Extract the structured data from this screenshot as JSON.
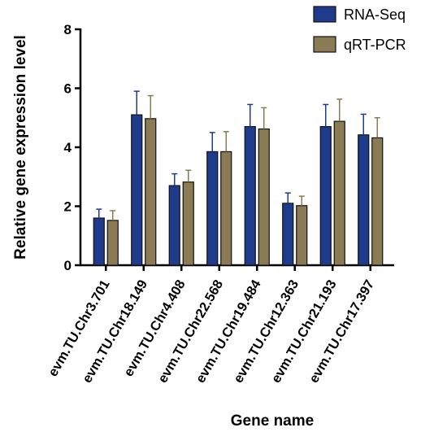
{
  "chart_data": {
    "type": "bar",
    "title": "",
    "xlabel": "Gene name",
    "ylabel": "Relative gene expression level",
    "ylim": [
      0,
      8
    ],
    "yticks": [
      0,
      2,
      4,
      6,
      8
    ],
    "grid": false,
    "legend_position": "top-right",
    "categories": [
      "evm.TU.Chr3.701",
      "evm.TU.Chr18.149",
      "evm.TU.Chr4.408",
      "evm.TU.Chr22.568",
      "evm.TU.Chr19.484",
      "evm.TU.Chr12.363",
      "evm.TU.Chr21.193",
      "evm.TU.Chr17.397"
    ],
    "series": [
      {
        "name": "RNA-Seq",
        "color": "#1f3c8c",
        "values": [
          1.6,
          5.1,
          2.7,
          3.85,
          4.7,
          2.1,
          4.7,
          4.42
        ],
        "errors": [
          0.3,
          0.8,
          0.4,
          0.65,
          0.75,
          0.35,
          0.75,
          0.7
        ]
      },
      {
        "name": "qRT-PCR",
        "color": "#8b7b55",
        "values": [
          1.52,
          4.97,
          2.82,
          3.85,
          4.62,
          2.02,
          4.88,
          4.32
        ],
        "errors": [
          0.33,
          0.78,
          0.4,
          0.68,
          0.72,
          0.32,
          0.75,
          0.68
        ]
      }
    ]
  }
}
